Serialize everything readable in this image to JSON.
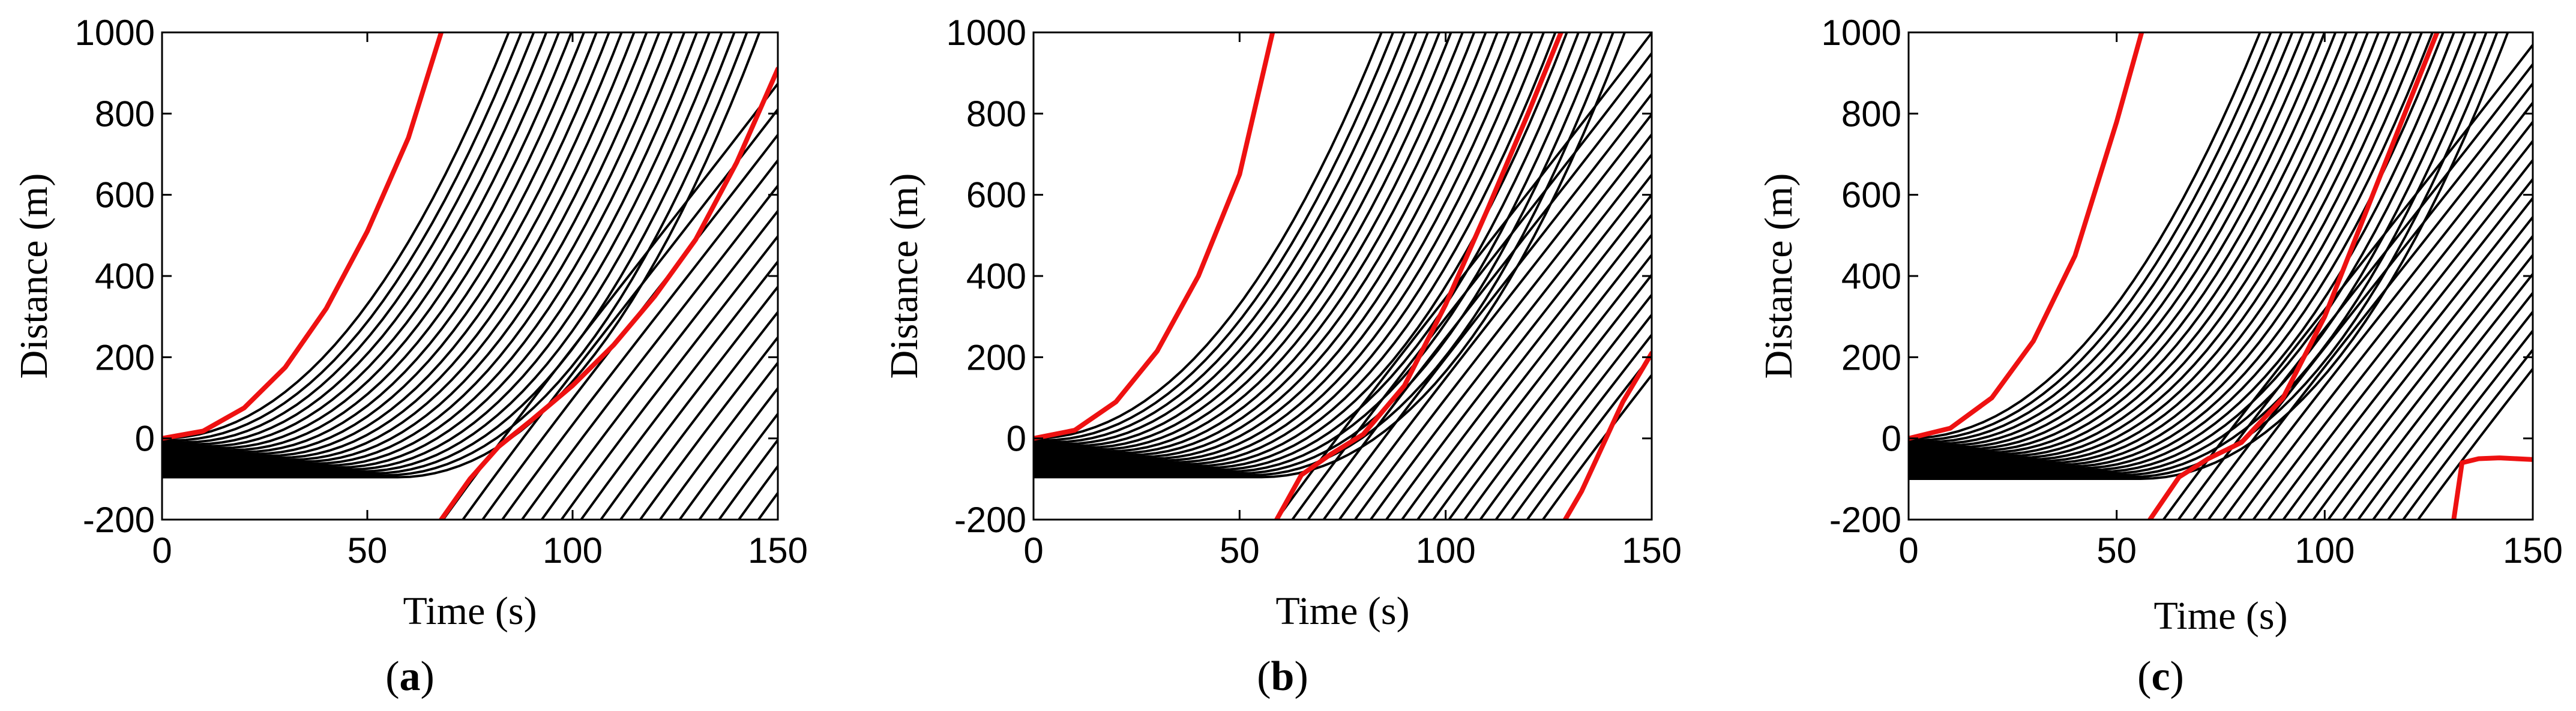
{
  "figure": {
    "background": "#ffffff",
    "line_color": "#000000",
    "highlight_color": "#ee1111"
  },
  "chart_data": [
    {
      "type": "line",
      "panel_label": "a",
      "xlabel": "Time (s)",
      "ylabel": "Distance (m)",
      "xlim": [
        0,
        150
      ],
      "ylim": [
        -200,
        1000
      ],
      "xticks": [
        "0",
        "50",
        "100",
        "150"
      ],
      "yticks": [
        "-200",
        "0",
        "200",
        "400",
        "600",
        "800",
        "1000"
      ],
      "grid": false,
      "legend": "none",
      "trajectories": {
        "count": 38,
        "queue_front_m": 0,
        "queue_back_m": -100,
        "depart_start_s": 0,
        "depart_end_s": 60,
        "upstream_first_entry_s": 68,
        "upstream_entry_step_s": 4.8,
        "entry_position_m": -200,
        "end_time_s": 150,
        "end_position_m": 1000
      },
      "highlighted_series": [
        {
          "x": [
            0,
            10,
            20,
            30,
            40,
            50,
            60,
            68
          ],
          "y": [
            0,
            18,
            75,
            175,
            320,
            510,
            740,
            1000
          ]
        },
        {
          "x": [
            68,
            75,
            82,
            90,
            100,
            110,
            120,
            130,
            140,
            150
          ],
          "y": [
            -200,
            -100,
            -20,
            45,
            130,
            230,
            350,
            490,
            680,
            910
          ]
        }
      ]
    },
    {
      "type": "line",
      "panel_label": "b",
      "xlabel": "Time (s)",
      "ylabel": "Distance (m)",
      "xlim": [
        0,
        150
      ],
      "ylim": [
        -200,
        1000
      ],
      "xticks": [
        "0",
        "50",
        "100",
        "150"
      ],
      "yticks": [
        "-200",
        "0",
        "200",
        "400",
        "600",
        "800",
        "1000"
      ],
      "grid": false,
      "legend": "none",
      "trajectories": {
        "count": 40,
        "queue_front_m": 0,
        "queue_back_m": -100,
        "depart_start_s": 0,
        "depart_end_s": 58,
        "upstream_first_entry_s": 59,
        "upstream_entry_step_s": 3.8,
        "entry_position_m": -200,
        "end_time_s": 150,
        "end_position_m": 1000
      },
      "highlighted_series": [
        {
          "x": [
            0,
            10,
            20,
            30,
            40,
            50,
            58
          ],
          "y": [
            0,
            20,
            90,
            215,
            400,
            650,
            1000
          ]
        },
        {
          "x": [
            59,
            65,
            72,
            80,
            90,
            100,
            110,
            120,
            128
          ],
          "y": [
            -200,
            -90,
            -40,
            10,
            130,
            330,
            560,
            800,
            1000
          ]
        },
        {
          "x": [
            129,
            133,
            138,
            143,
            150
          ],
          "y": [
            -200,
            -130,
            -20,
            90,
            210
          ]
        }
      ]
    },
    {
      "type": "line",
      "panel_label": "c",
      "xlabel": "Time (s)",
      "ylabel": "Distance (m)",
      "xlim": [
        0,
        150
      ],
      "ylim": [
        -200,
        1000
      ],
      "xticks": [
        "0",
        "50",
        "100",
        "150"
      ],
      "yticks": [
        "-200",
        "0",
        "200",
        "400",
        "600",
        "800",
        "1000"
      ],
      "grid": false,
      "legend": "none",
      "trajectories": {
        "count": 42,
        "queue_front_m": 0,
        "queue_back_m": -100,
        "depart_start_s": 0,
        "depart_end_s": 56,
        "upstream_first_entry_s": 58,
        "upstream_entry_step_s": 3.6,
        "entry_position_m": -200,
        "end_time_s": 150,
        "end_position_m": 1000
      },
      "highlighted_series": [
        {
          "x": [
            0,
            10,
            20,
            30,
            40,
            50,
            56
          ],
          "y": [
            0,
            25,
            100,
            240,
            450,
            780,
            1000
          ]
        },
        {
          "x": [
            58,
            65,
            72,
            80,
            90,
            100,
            110,
            120,
            127
          ],
          "y": [
            -200,
            -95,
            -50,
            -10,
            100,
            300,
            560,
            820,
            1000
          ]
        },
        {
          "x": [
            131,
            133,
            137,
            142,
            150
          ],
          "y": [
            -200,
            -60,
            -50,
            -48,
            -52
          ]
        }
      ]
    }
  ]
}
